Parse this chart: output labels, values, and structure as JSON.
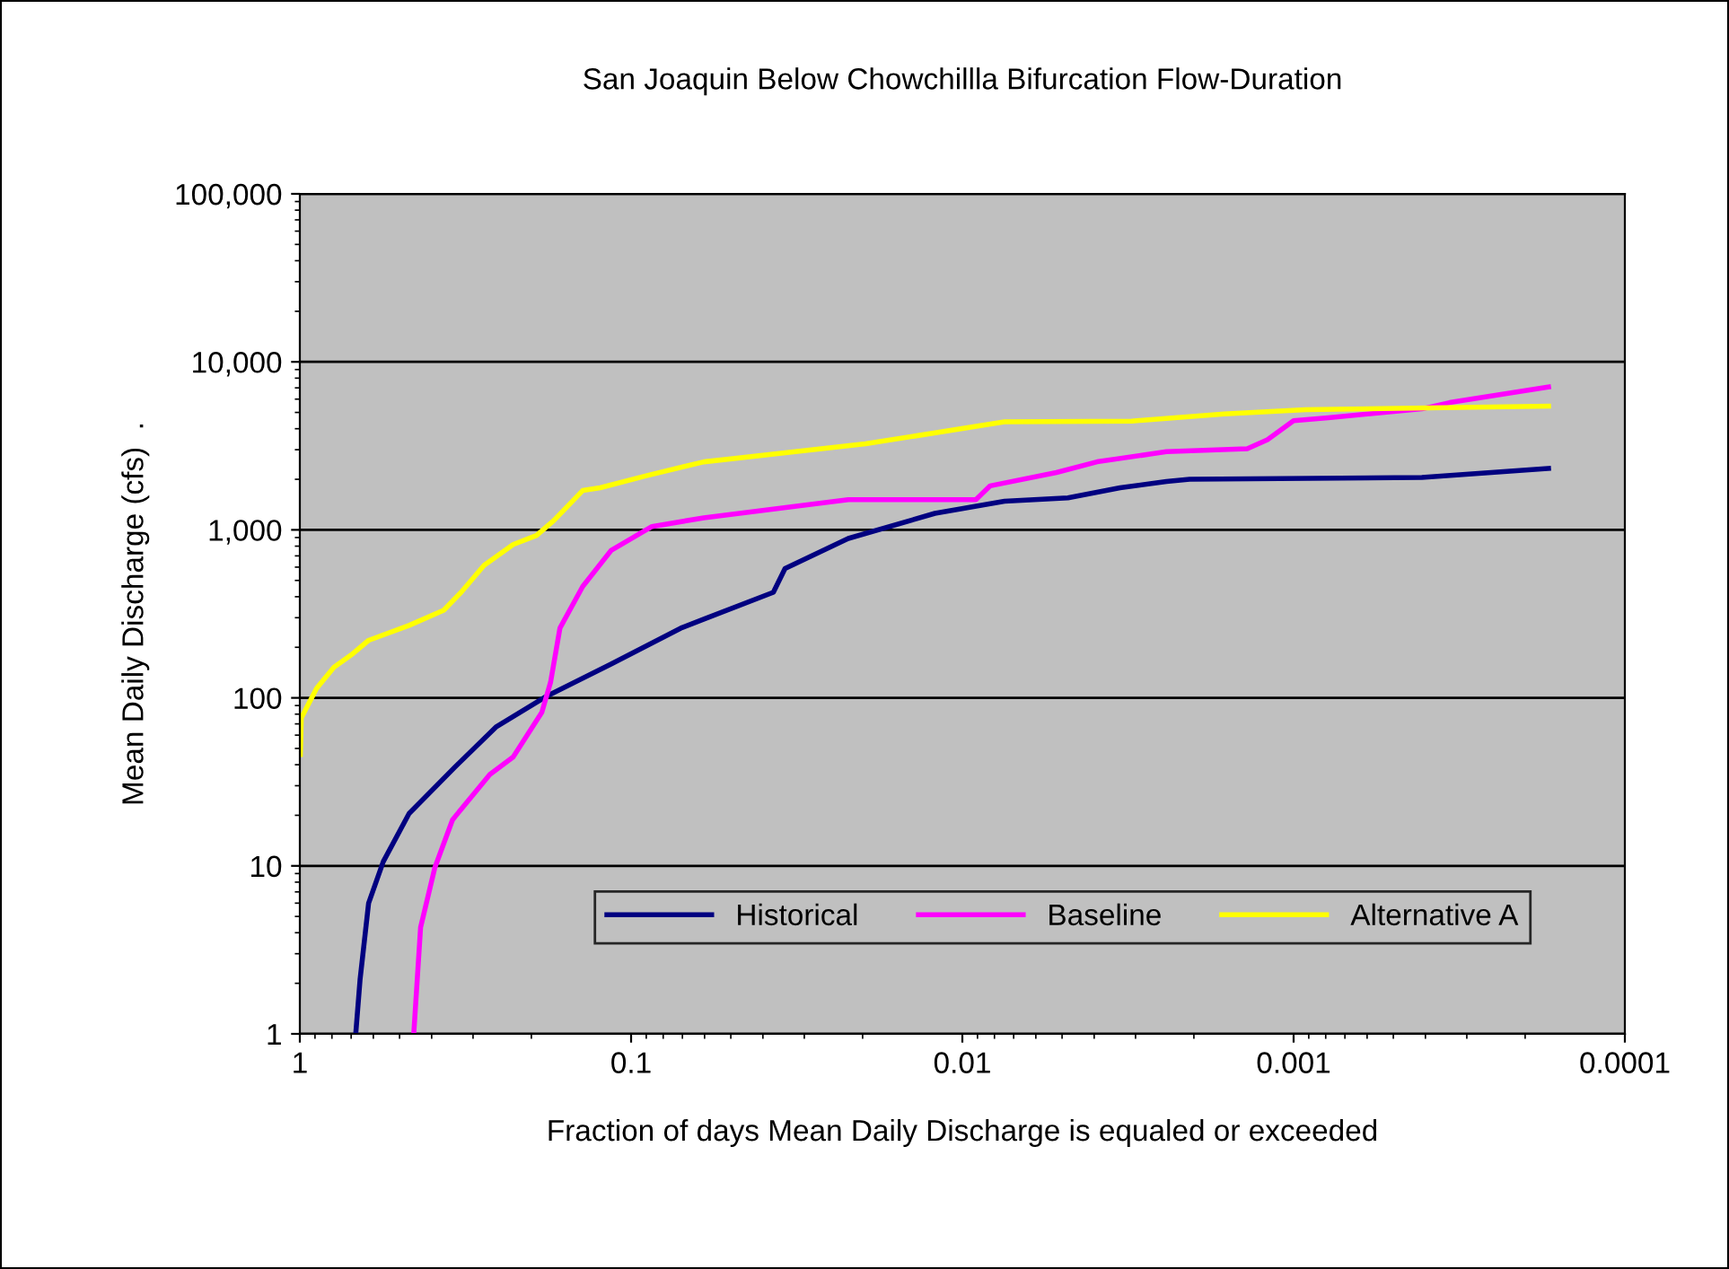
{
  "chart_data": {
    "type": "line",
    "title": "San Joaquin Below Chowchillla Bifurcation Flow-Duration",
    "xlabel": "Fraction of days Mean Daily Discharge is equaled or exceeded",
    "ylabel": "Mean Daily Discharge (cfs)  .",
    "log": "xy",
    "xlim": [
      1,
      0.0001
    ],
    "xticks": [
      1,
      0.1,
      0.01,
      0.001,
      0.0001
    ],
    "ylim": [
      1,
      100000
    ],
    "yticks": [
      1,
      10,
      100,
      {
        "value": 1000,
        "label": "1,000"
      },
      {
        "value": 10000,
        "label": "10,000"
      },
      {
        "value": 100000,
        "label": "100,000"
      }
    ],
    "grid": "y",
    "legend": "bottom right",
    "marker": "none",
    "line_style": "solid",
    "series": [
      {
        "name": "Historical",
        "color": "#000080",
        "x": [
          0.678,
          0.658,
          0.62,
          0.56,
          0.468,
          0.339,
          0.256,
          0.182,
          0.115,
          0.0708,
          0.0603,
          0.0372,
          0.0343,
          0.0221,
          0.0121,
          0.00746,
          0.0048,
          0.00334,
          0.00242,
          0.00206,
          0.00041,
          0.00017
        ],
        "values": [
          1,
          2.1,
          6,
          10.6,
          20.5,
          39,
          67,
          101,
          159,
          260,
          294,
          425,
          589,
          889,
          1254,
          1479,
          1550,
          1780,
          1940,
          2000,
          2050,
          2320
        ]
      },
      {
        "name": "Baseline",
        "color": "#ff00ff",
        "x": [
          0.453,
          0.432,
          0.391,
          0.346,
          0.267,
          0.227,
          0.186,
          0.175,
          0.164,
          0.14,
          0.115,
          0.0865,
          0.0603,
          0.0221,
          0.0091,
          0.00824,
          0.0052,
          0.00392,
          0.00242,
          0.00138,
          0.0012,
          0.001,
          0.000786,
          0.00041,
          0.000338,
          0.00017
        ],
        "values": [
          1,
          4.3,
          9.8,
          18.8,
          35,
          44.5,
          82,
          124,
          260,
          460,
          753,
          1047,
          1180,
          1513,
          1513,
          1828,
          2193,
          2540,
          2920,
          3040,
          3440,
          4470,
          4650,
          5250,
          5720,
          7080
        ]
      },
      {
        "name": "Alternative A",
        "color": "#ffff00",
        "x": [
          0.996,
          0.99,
          0.89,
          0.789,
          0.7,
          0.62,
          0.468,
          0.368,
          0.326,
          0.278,
          0.227,
          0.193,
          0.171,
          0.14,
          0.124,
          0.09,
          0.0603,
          0.0196,
          0.00746,
          0.00308,
          0.00162,
          0.00092,
          0.00017
        ],
        "values": [
          46,
          76,
          114,
          152,
          180,
          220,
          270,
          332,
          425,
          614,
          818,
          926,
          1138,
          1714,
          1780,
          2100,
          2540,
          3250,
          4400,
          4440,
          4900,
          5190,
          5450
        ]
      }
    ]
  }
}
